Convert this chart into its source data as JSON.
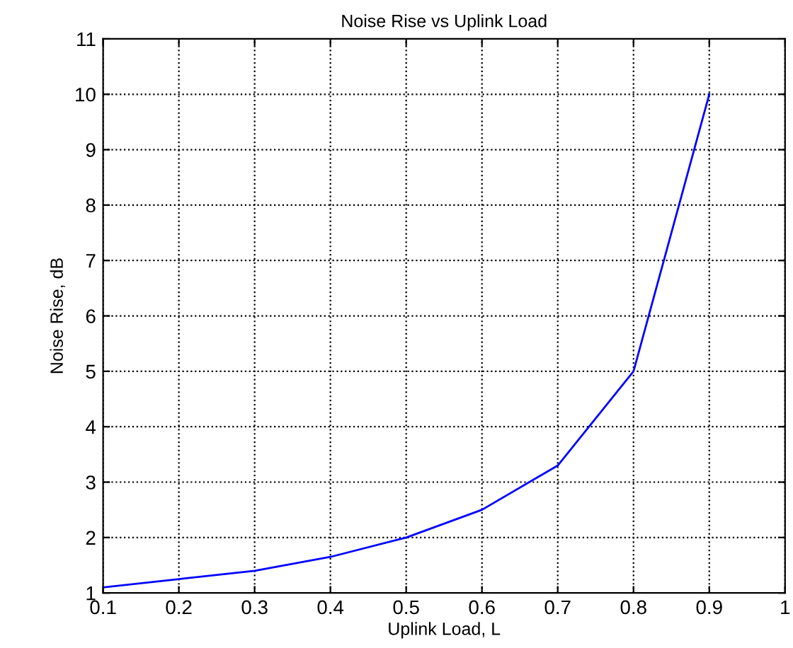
{
  "chart_data": {
    "type": "line",
    "title": "Noise Rise vs Uplink Load",
    "xlabel": "Uplink Load, L",
    "ylabel": "Noise Rise, dB",
    "x": [
      0.1,
      0.2,
      0.3,
      0.4,
      0.5,
      0.6,
      0.7,
      0.8,
      0.9
    ],
    "series": [
      {
        "color": "#0000ff",
        "values": [
          1.1,
          1.25,
          1.4,
          1.65,
          2,
          2.5,
          3.3,
          5,
          10
        ]
      }
    ],
    "xlim": [
      0.1,
      1
    ],
    "xticks": [
      0.1,
      0.2,
      0.3,
      0.4,
      0.5,
      0.6,
      0.7,
      0.8,
      0.9,
      1
    ],
    "ylim": [
      1,
      11
    ],
    "yticks": [
      1,
      2,
      3,
      4,
      5,
      6,
      7,
      8,
      9,
      10,
      11
    ],
    "grid": true,
    "line_style": "solid",
    "marker": "none"
  }
}
